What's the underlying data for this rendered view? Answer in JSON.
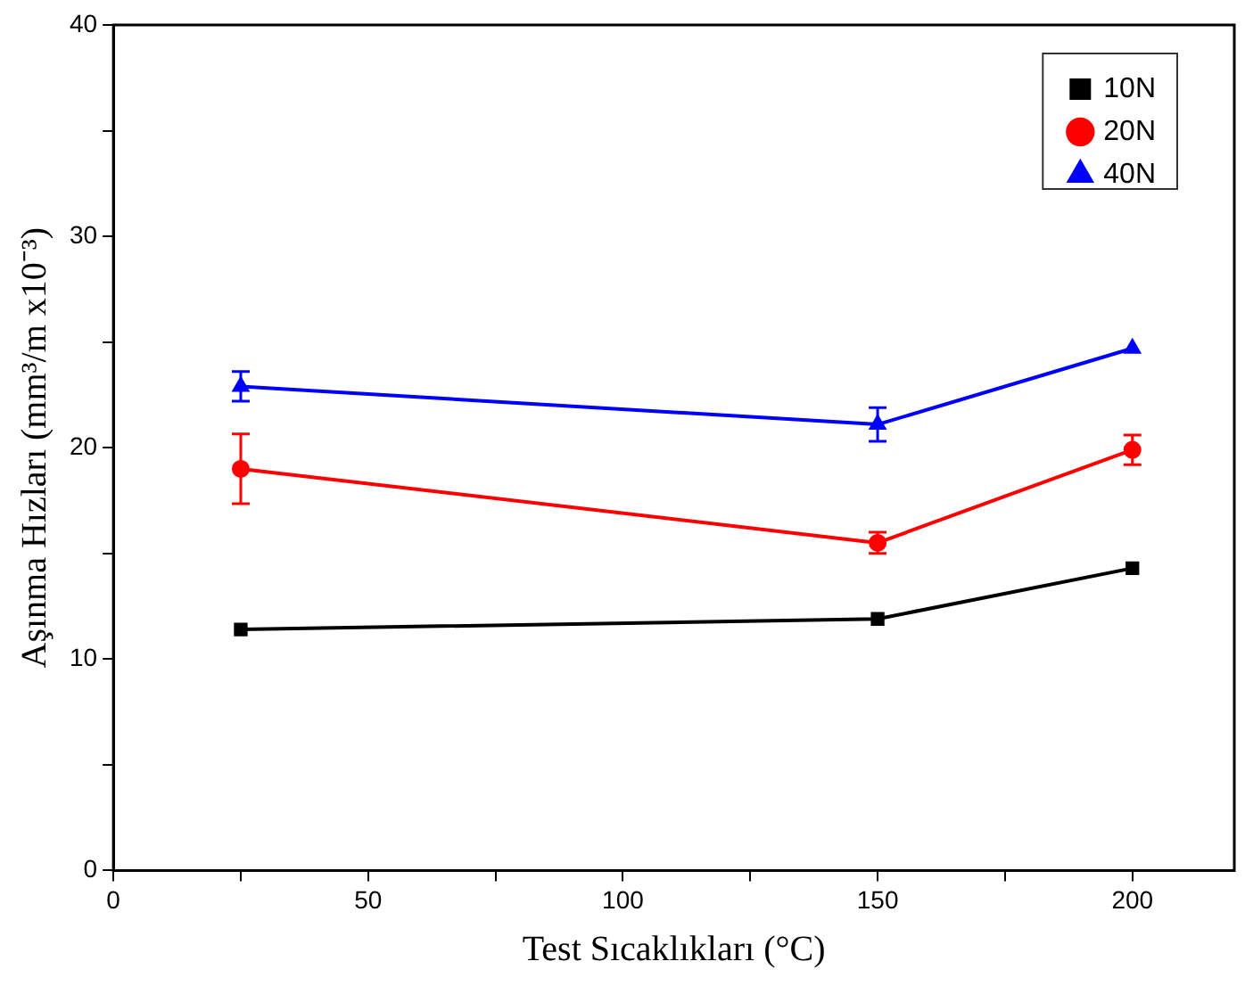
{
  "chart_data": {
    "type": "line",
    "xlabel": "Test Sıcaklıkları (°C)",
    "ylabel": "Aşınma Hızları (mm³/m x10⁻³)",
    "x": [
      25,
      150,
      200
    ],
    "series": [
      {
        "name": "10N",
        "color": "#000000",
        "marker": "square",
        "values": [
          11.4,
          11.9,
          14.3
        ]
      },
      {
        "name": "20N",
        "color": "#ff0000",
        "marker": "circle",
        "values": [
          19.0,
          15.5,
          19.9
        ],
        "errors": [
          1.65,
          0.5,
          0.7
        ]
      },
      {
        "name": "40N",
        "color": "#0000ff",
        "marker": "triangle",
        "values": [
          22.9,
          21.1,
          24.7
        ],
        "errors": [
          0.7,
          0.8,
          null
        ]
      }
    ],
    "xlim": [
      0,
      220
    ],
    "xticks": [
      0,
      {
        "value": 25,
        "label": null
      },
      50,
      {
        "value": 75,
        "label": null
      },
      100,
      {
        "value": 125,
        "label": null
      },
      150,
      {
        "value": 175,
        "label": null
      },
      200
    ],
    "ylim": [
      0,
      40
    ],
    "yticks": [
      0,
      {
        "value": 5,
        "label": null
      },
      10,
      {
        "value": 15,
        "label": null
      },
      20,
      {
        "value": 25,
        "label": null
      },
      30,
      {
        "value": 35,
        "label": null
      },
      40
    ],
    "grid": false,
    "legend": "top right",
    "line_style": "solid"
  }
}
